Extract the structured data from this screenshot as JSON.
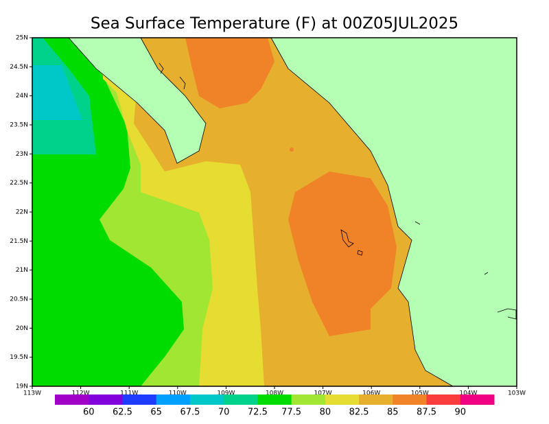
{
  "title": "Sea Surface Temperature (F) at 00Z05JUL2025",
  "lat_labels": [
    "25N",
    "24.5N",
    "24N",
    "23.5N",
    "23N",
    "22.5N",
    "22N",
    "21.5N",
    "21N",
    "20.5N",
    "20N",
    "19.5N",
    "19N"
  ],
  "lon_labels": [
    "113W",
    "112W",
    "111W",
    "110W",
    "109W",
    "108W",
    "107W",
    "106W",
    "105W",
    "104W",
    "103W"
  ],
  "colorbar": {
    "colors": [
      "#a000c8",
      "#8200dc",
      "#1e3cff",
      "#00a0ff",
      "#00c8c8",
      "#00d28c",
      "#00dc00",
      "#a0e632",
      "#e6dc32",
      "#e6af2d",
      "#f08228",
      "#fa3c3c",
      "#f00082"
    ],
    "labels": [
      60,
      62.5,
      65,
      67.5,
      70,
      72.5,
      77.5,
      80,
      82.5,
      85,
      87.5,
      90
    ]
  }
}
